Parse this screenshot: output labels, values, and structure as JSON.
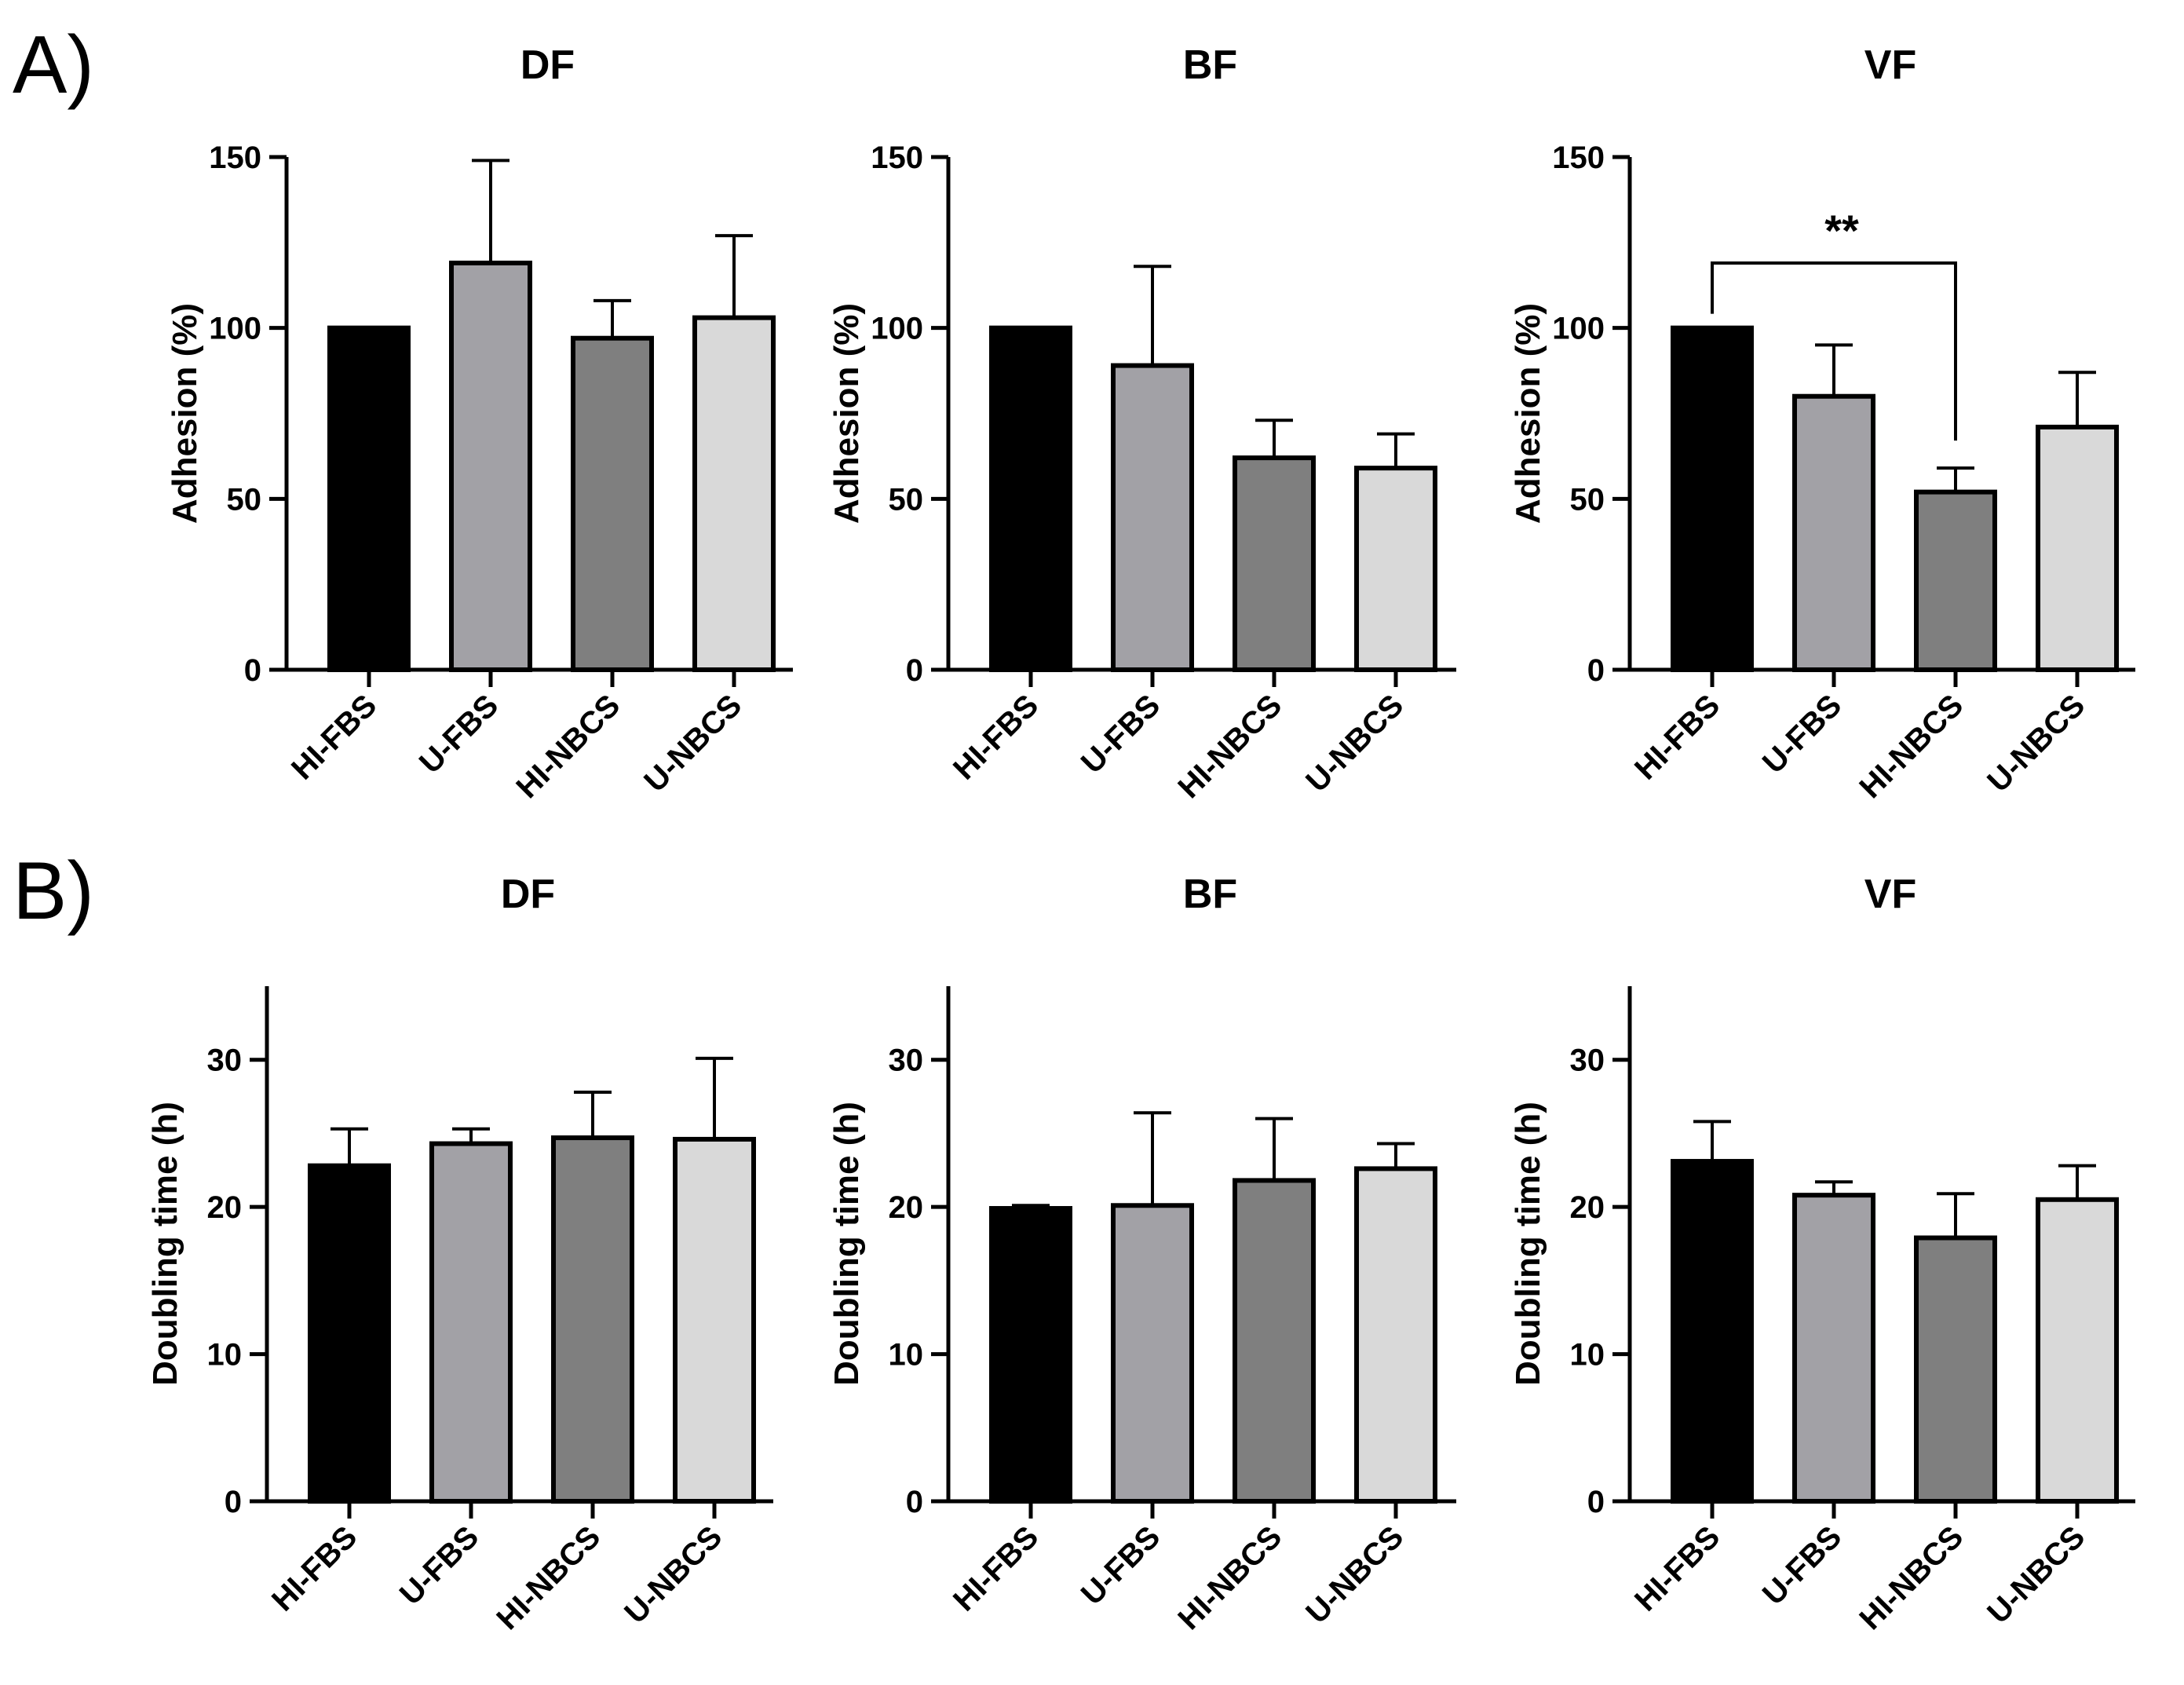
{
  "panels": [
    {
      "letter": "A)"
    },
    {
      "letter": "B)"
    }
  ],
  "colors": {
    "HI-FBS": "#000000",
    "U-FBS": "#a2a1a6",
    "HI-NBCS": "#7f7f7f",
    "U-NBCS": "#d9d9d9",
    "stroke": "#000000"
  },
  "chart_data": [
    {
      "panel": "A)",
      "type": "bar",
      "title": "DF",
      "xlabel": "",
      "ylabel": "Adhesion (%)",
      "ylim": [
        0,
        150
      ],
      "yticks": [
        0,
        50,
        100,
        150
      ],
      "categories": [
        "HI-FBS",
        "U-FBS",
        "HI-NBCS",
        "U-NBCS"
      ],
      "values": [
        100,
        119,
        97,
        103
      ],
      "errors": [
        0,
        30,
        11,
        24
      ],
      "significance": []
    },
    {
      "panel": "A)",
      "type": "bar",
      "title": "BF",
      "xlabel": "",
      "ylabel": "Adhesion (%)",
      "ylim": [
        0,
        150
      ],
      "yticks": [
        0,
        50,
        100,
        150
      ],
      "categories": [
        "HI-FBS",
        "U-FBS",
        "HI-NBCS",
        "U-NBCS"
      ],
      "values": [
        100,
        89,
        62,
        59
      ],
      "errors": [
        0,
        29,
        11,
        10
      ],
      "significance": []
    },
    {
      "panel": "A)",
      "type": "bar",
      "title": "VF",
      "xlabel": "",
      "ylabel": "Adhesion (%)",
      "ylim": [
        0,
        150
      ],
      "yticks": [
        0,
        50,
        100,
        150
      ],
      "categories": [
        "HI-FBS",
        "U-FBS",
        "HI-NBCS",
        "U-NBCS"
      ],
      "values": [
        100,
        80,
        52,
        71
      ],
      "errors": [
        0,
        15,
        7,
        16
      ],
      "significance": [
        {
          "from": "HI-FBS",
          "to": "HI-NBCS",
          "label": "**",
          "y": 119
        }
      ]
    },
    {
      "panel": "B)",
      "type": "bar",
      "title": "DF",
      "xlabel": "",
      "ylabel": "Doubling time (h)",
      "ylim": [
        0,
        35
      ],
      "yticks": [
        0,
        10,
        20,
        30
      ],
      "categories": [
        "HI-FBS",
        "U-FBS",
        "HI-NBCS",
        "U-NBCS"
      ],
      "values": [
        22.8,
        24.3,
        24.7,
        24.6
      ],
      "errors": [
        2.5,
        1.0,
        3.1,
        5.5
      ],
      "significance": []
    },
    {
      "panel": "B)",
      "type": "bar",
      "title": "BF",
      "xlabel": "",
      "ylabel": "Doubling time (h)",
      "ylim": [
        0,
        35
      ],
      "yticks": [
        0,
        10,
        20,
        30
      ],
      "categories": [
        "HI-FBS",
        "U-FBS",
        "HI-NBCS",
        "U-NBCS"
      ],
      "values": [
        19.9,
        20.1,
        21.8,
        22.6
      ],
      "errors": [
        0.2,
        6.3,
        4.2,
        1.7
      ],
      "significance": []
    },
    {
      "panel": "B)",
      "type": "bar",
      "title": "VF",
      "xlabel": "",
      "ylabel": "Doubling time (h)",
      "ylim": [
        0,
        35
      ],
      "yticks": [
        0,
        10,
        20,
        30
      ],
      "categories": [
        "HI-FBS",
        "U-FBS",
        "HI-NBCS",
        "U-NBCS"
      ],
      "values": [
        23.1,
        20.8,
        17.9,
        20.5
      ],
      "errors": [
        2.7,
        0.9,
        3.0,
        2.3
      ],
      "significance": []
    }
  ]
}
